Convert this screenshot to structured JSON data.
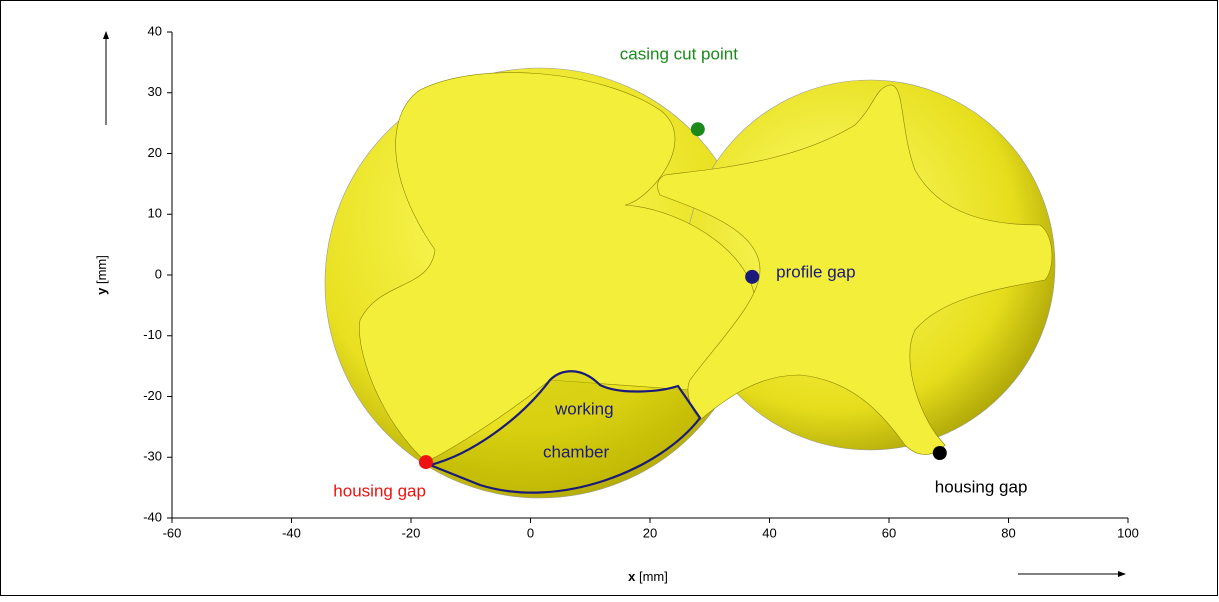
{
  "chart_data": {
    "type": "scatter",
    "xlabel": {
      "symbol": "x",
      "unit": "[mm]"
    },
    "ylabel": {
      "symbol": "y",
      "unit": "[mm]"
    },
    "xlim": [
      -60,
      100
    ],
    "xticks": [
      -60,
      -40,
      -20,
      0,
      20,
      40,
      60,
      80,
      100
    ],
    "ylim": [
      -40,
      40
    ],
    "yticks": [
      -40,
      -30,
      -20,
      -10,
      0,
      10,
      20,
      30,
      40
    ],
    "series": [
      {
        "name": "casing cut point",
        "color": "#1b8a1b",
        "x": [
          28
        ],
        "values": [
          24
        ]
      },
      {
        "name": "profile gap",
        "color": "#1a1a7a",
        "x": [
          37.1
        ],
        "values": [
          -0.3
        ]
      },
      {
        "name": "housing gap",
        "color": "#ee1111",
        "x": [
          -17.5
        ],
        "values": [
          -30.8
        ]
      },
      {
        "name": "housing gap",
        "color": "#000000",
        "x": [
          68.5
        ],
        "values": [
          -29.3
        ]
      }
    ],
    "annotations": [
      "working",
      "chamber"
    ]
  }
}
